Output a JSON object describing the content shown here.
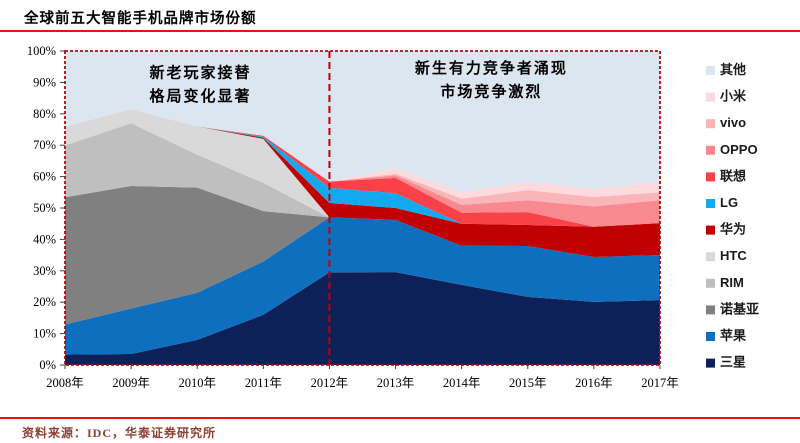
{
  "page": {
    "title": "全球前五大智能手机品牌市场份额",
    "source_note": "资料来源：IDC，华泰证券研究所"
  },
  "colors": {
    "rule_red": "#e8120e",
    "plot_border_red": "#b50b0b",
    "divider_red": "#c00000",
    "axis_tick": "#404040",
    "axis_text": "#000000",
    "annotation_text": "#000000",
    "legend_text": "#1a1a1a",
    "source_text": "#8e4036"
  },
  "chart_data": {
    "type": "area",
    "stacked": true,
    "title": "全球前五大智能手机品牌市场份额",
    "xlabel": "",
    "ylabel": "",
    "ylim": [
      0,
      100
    ],
    "unit": "%",
    "grid": false,
    "legend_position": "right",
    "x_labels": [
      "2008年",
      "2009年",
      "2010年",
      "2011年",
      "2012年",
      "2013年",
      "2014年",
      "2015年",
      "2016年",
      "2017年"
    ],
    "y_tick_labels": [
      "0%",
      "10%",
      "20%",
      "30%",
      "40%",
      "50%",
      "60%",
      "70%",
      "80%",
      "90%",
      "100%"
    ],
    "divider_year": "2012年",
    "divider_index": 4,
    "series": [
      {
        "name": "三星",
        "color": "#0d2158",
        "values": [
          3.3,
          3.5,
          8.0,
          16.0,
          29.5,
          29.6,
          25.5,
          21.7,
          20.1,
          20.7
        ]
      },
      {
        "name": "苹果",
        "color": "#0e6fbe",
        "values": [
          9.6,
          14.5,
          15.0,
          17.0,
          17.5,
          16.6,
          12.5,
          16.2,
          14.3,
          14.3
        ]
      },
      {
        "name": "诺基亚",
        "color": "#808080",
        "values": [
          40.5,
          39.0,
          33.5,
          16.0,
          0,
          0,
          0,
          0,
          0,
          0
        ]
      },
      {
        "name": "RIM",
        "color": "#bfbfbf",
        "values": [
          16.5,
          20.0,
          10.5,
          9.0,
          0,
          0,
          0,
          0,
          0,
          0
        ]
      },
      {
        "name": "HTC",
        "color": "#d9d9d9",
        "values": [
          6.0,
          4.5,
          9.0,
          14.0,
          0,
          0,
          0,
          0,
          0,
          0
        ]
      },
      {
        "name": "华为",
        "color": "#c00000",
        "values": [
          0,
          0,
          0,
          0.4,
          4.6,
          3.8,
          7.0,
          6.7,
          9.6,
          10.2
        ]
      },
      {
        "name": "LG",
        "color": "#12aaee",
        "values": [
          0,
          0,
          0,
          0.3,
          4.8,
          4.7,
          0,
          0,
          0,
          0
        ]
      },
      {
        "name": "联想",
        "color": "#f94149",
        "values": [
          0,
          0,
          0,
          0.3,
          2.0,
          4.9,
          3.5,
          4.1,
          0,
          0
        ]
      },
      {
        "name": "OPPO",
        "color": "#f9898e",
        "values": [
          0,
          0,
          0,
          0,
          0,
          0.8,
          2.5,
          3.8,
          6.5,
          7.3
        ]
      },
      {
        "name": "vivo",
        "color": "#fab5b9",
        "values": [
          0,
          0,
          0,
          0,
          0,
          0.5,
          2.0,
          3.2,
          3.0,
          2.5
        ]
      },
      {
        "name": "小米",
        "color": "#fcdadd",
        "values": [
          0,
          0,
          0,
          0,
          0,
          1.8,
          2.0,
          2.6,
          2.5,
          3.3
        ]
      },
      {
        "name": "其他",
        "color": "#dce6f1",
        "values": [
          24.1,
          18.5,
          24.0,
          27.0,
          41.6,
          37.3,
          45.0,
          41.7,
          44.0,
          41.7
        ]
      }
    ],
    "legend_order": "top-to-bottom reverse of stacking",
    "annotations": [
      {
        "lines": [
          "新老玩家接替",
          "格局变化显著"
        ],
        "x_year": 2.05,
        "line_y_pcts": [
          91.5,
          84.0
        ]
      },
      {
        "lines": [
          "新生有力竞争者涌现",
          "市场竞争激烈"
        ],
        "x_year": 6.45,
        "line_y_pcts": [
          93.0,
          85.5
        ]
      }
    ]
  }
}
